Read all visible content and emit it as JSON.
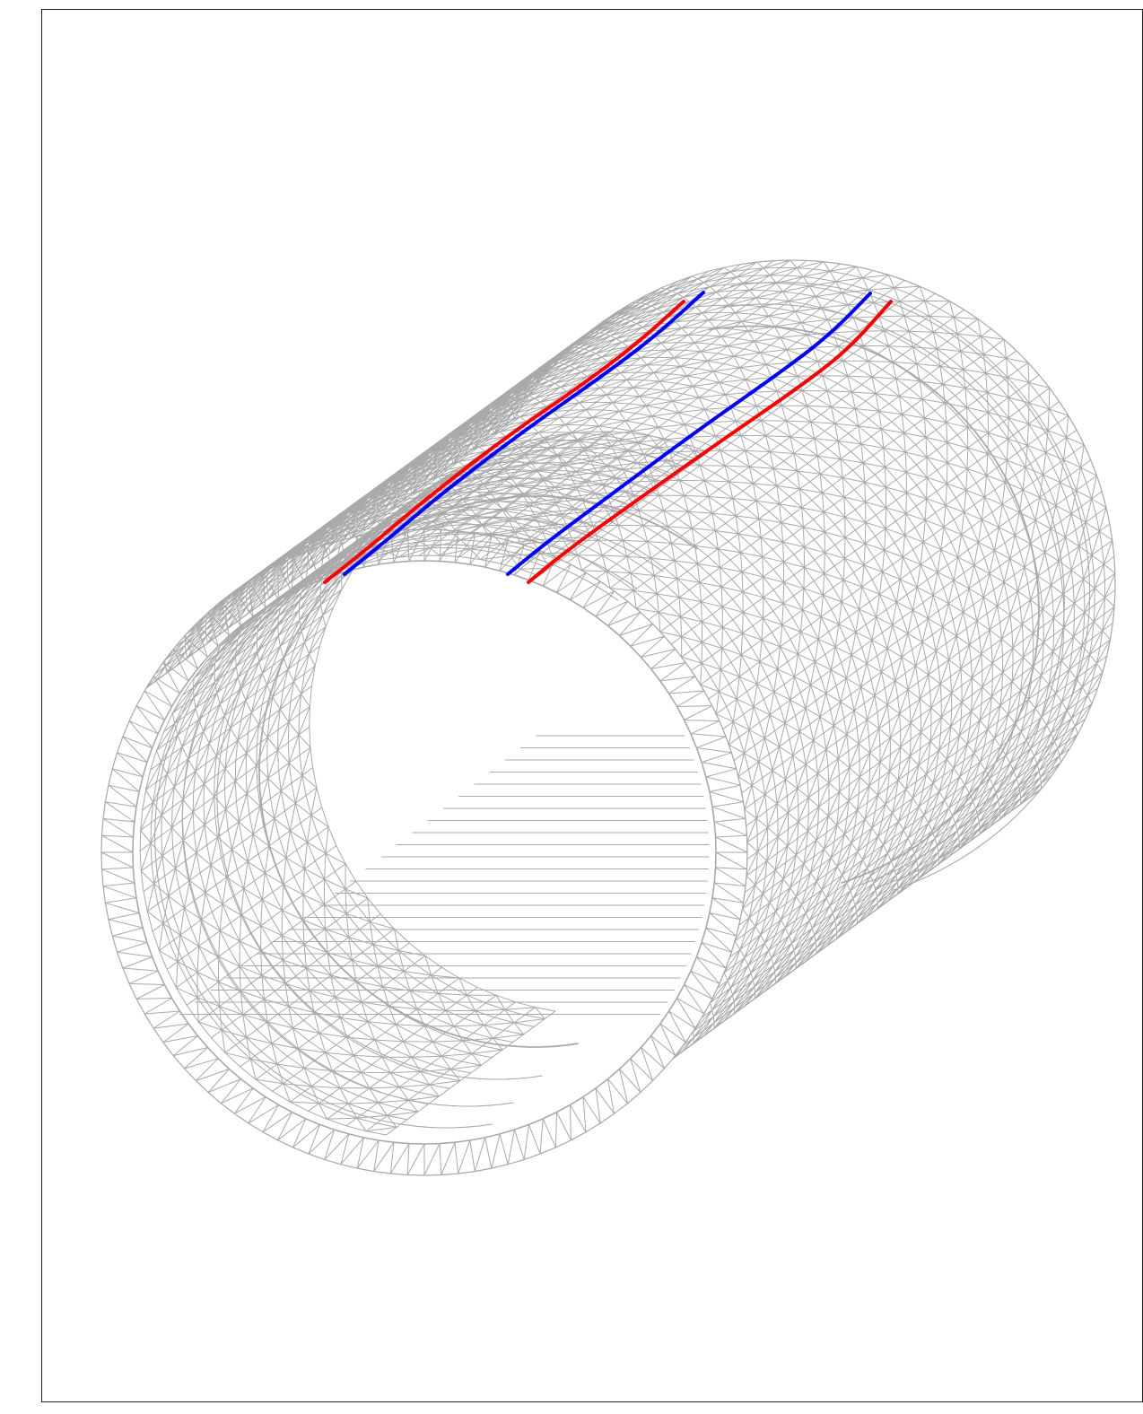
{
  "figure": {
    "subject": "triangulated-cylindrical-shell-mesh",
    "mesh_color": "#a9a9a9",
    "frame_color": "#222222",
    "background_color": "#ffffff"
  },
  "curves": [
    {
      "id": "outer-left",
      "color": "#ff0000"
    },
    {
      "id": "inner-left",
      "color": "#0000ff"
    },
    {
      "id": "inner-right",
      "color": "#0000ff"
    },
    {
      "id": "outer-right",
      "color": "#ff0000"
    }
  ]
}
